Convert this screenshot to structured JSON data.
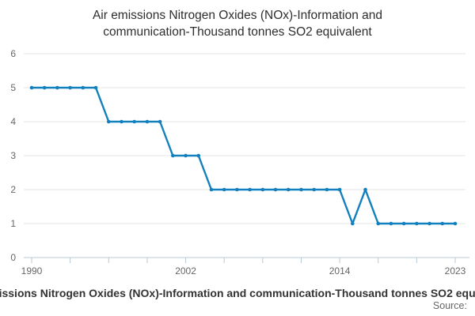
{
  "header": {
    "title_lines": [
      "Air emissions Nitrogen Oxides (NOx)-Information and",
      "communication-Thousand tonnes SO2 equivalent"
    ],
    "title_full": "Air emissions Nitrogen Oxides (NOx)-Information and communication-Thousand tonnes SO2 equivalent"
  },
  "chart_data": {
    "type": "line",
    "title": "Air emissions Nitrogen Oxides (NOx)-Information and communication-Thousand tonnes SO2 equivalent",
    "series_name": "Air emissions Nitrogen Oxides (NOx)-Information and communication-Thousand tonnes SO2 equivalent",
    "x": [
      1990,
      1991,
      1992,
      1993,
      1994,
      1995,
      1996,
      1997,
      1998,
      1999,
      2000,
      2001,
      2002,
      2003,
      2004,
      2005,
      2006,
      2007,
      2008,
      2009,
      2010,
      2011,
      2012,
      2013,
      2014,
      2015,
      2016,
      2017,
      2018,
      2019,
      2020,
      2021,
      2022,
      2023
    ],
    "values": [
      5,
      5,
      5,
      5,
      5,
      5,
      4,
      4,
      4,
      4,
      4,
      3,
      3,
      3,
      2,
      2,
      2,
      2,
      2,
      2,
      2,
      2,
      2,
      2,
      2,
      1,
      2,
      1,
      1,
      1,
      1,
      1,
      1,
      1
    ],
    "xlabel": "",
    "ylabel": "",
    "ylim": [
      0,
      6
    ],
    "yticks": [
      0,
      1,
      2,
      3,
      4,
      5,
      6
    ],
    "xtick_interval_years": 3,
    "xtick_labels": [
      1990,
      2002,
      2014,
      2023
    ],
    "xlim": [
      1990,
      2023
    ],
    "grid": "horizontal",
    "legend_position": "bottom",
    "marker": "circle"
  },
  "footer": {
    "source_label": "Source:"
  },
  "colors": {
    "line": "#1380be",
    "marker": "#1380be",
    "grid": "#e6e6e6",
    "axis": "#b9cbd8",
    "tick_text": "#666666",
    "title_text": "#2e2e2e",
    "legend_text": "#333333",
    "background": "#ffffff"
  }
}
